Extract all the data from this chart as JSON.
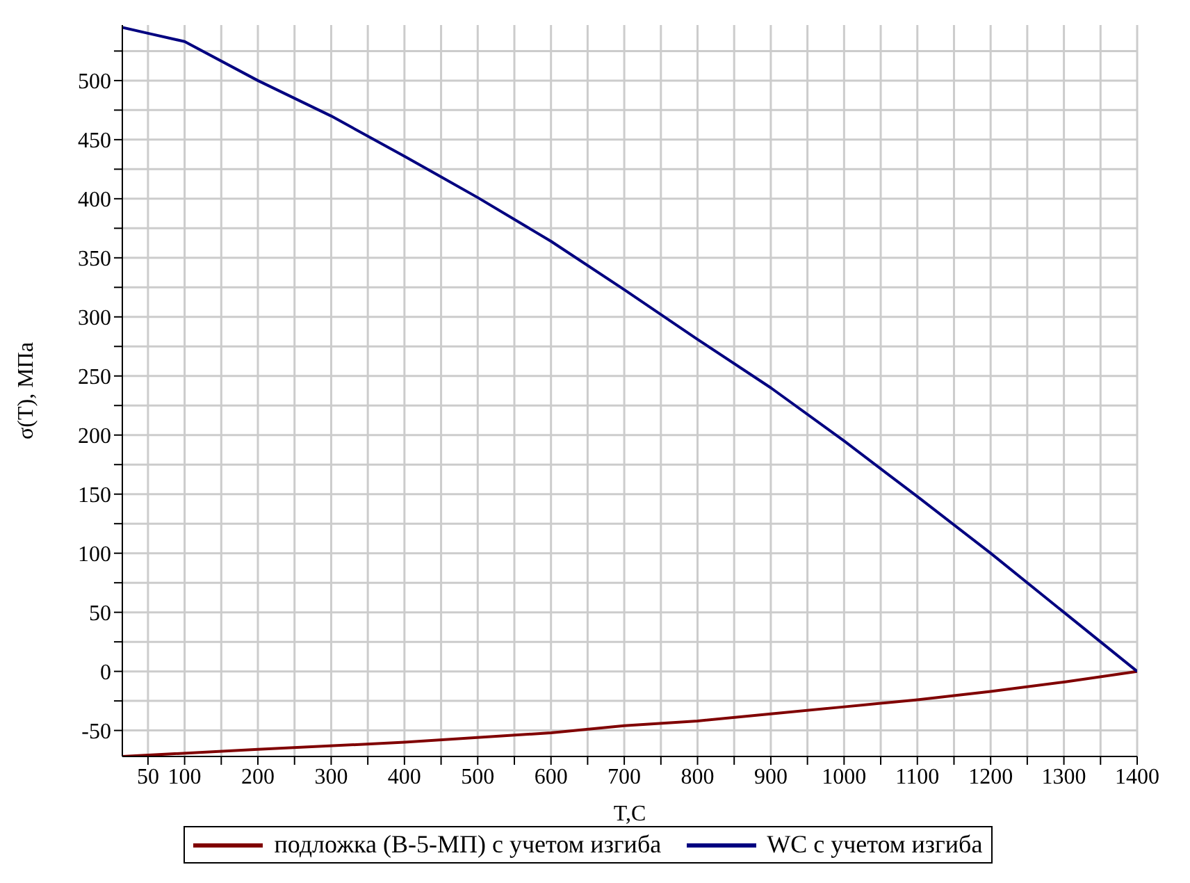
{
  "chart_data": {
    "type": "line",
    "xlabel": "T,C",
    "ylabel": "σ(T), МПа",
    "xlim": [
      15,
      1400
    ],
    "ylim": [
      -72,
      547
    ],
    "xticks": [
      50,
      100,
      {
        "value": 150,
        "label": null
      },
      200,
      {
        "value": 250,
        "label": null
      },
      300,
      {
        "value": 350,
        "label": null
      },
      400,
      {
        "value": 450,
        "label": null
      },
      500,
      {
        "value": 550,
        "label": null
      },
      600,
      {
        "value": 650,
        "label": null
      },
      700,
      {
        "value": 750,
        "label": null
      },
      800,
      {
        "value": 850,
        "label": null
      },
      900,
      {
        "value": 950,
        "label": null
      },
      1000,
      {
        "value": 1050,
        "label": null
      },
      1100,
      {
        "value": 1150,
        "label": null
      },
      1200,
      {
        "value": 1250,
        "label": null
      },
      1300,
      {
        "value": 1350,
        "label": null
      },
      1400
    ],
    "yticks": [
      -50,
      {
        "value": -25,
        "label": null
      },
      0,
      {
        "value": 25,
        "label": null
      },
      50,
      {
        "value": 75,
        "label": null
      },
      100,
      {
        "value": 125,
        "label": null
      },
      150,
      {
        "value": 175,
        "label": null
      },
      200,
      {
        "value": 225,
        "label": null
      },
      250,
      {
        "value": 275,
        "label": null
      },
      300,
      {
        "value": 325,
        "label": null
      },
      350,
      {
        "value": 375,
        "label": null
      },
      400,
      {
        "value": 425,
        "label": null
      },
      450,
      {
        "value": 475,
        "label": null
      },
      500,
      {
        "value": 525,
        "label": null
      }
    ],
    "grid": true,
    "legend": "bottom",
    "marker": "none",
    "line_style": "solid",
    "series": [
      {
        "name": "подложка (В-5-МП) с учетом изгиба",
        "color": "#800000",
        "x": [
          15,
          200,
          400,
          600,
          700,
          800,
          900,
          1000,
          1100,
          1200,
          1300,
          1400
        ],
        "values": [
          -72,
          -66,
          -60,
          -52,
          -46,
          -42,
          -36,
          -30,
          -24,
          -17,
          -9,
          0
        ]
      },
      {
        "name": "WC с учетом изгиба",
        "color": "#000080",
        "x": [
          15,
          50,
          100,
          200,
          300,
          400,
          500,
          600,
          700,
          800,
          900,
          1000,
          1100,
          1200,
          1300,
          1400
        ],
        "values": [
          545,
          540,
          533,
          500,
          470,
          436,
          401,
          364,
          323,
          281,
          240,
          195,
          148,
          100,
          50,
          0
        ]
      }
    ]
  }
}
